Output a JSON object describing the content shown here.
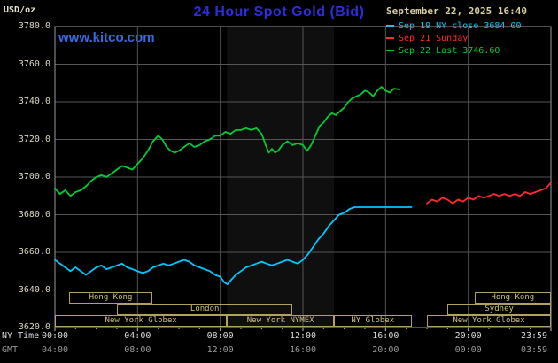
{
  "header": {
    "units": "USD/oz",
    "title": "24 Hour Spot Gold (Bid)",
    "datetime": "September 22, 2025 16:40",
    "watermark": "www.kitco.com",
    "legend": [
      {
        "label": "Sep 19 NY close 3684.00",
        "color": "#00c8ff"
      },
      {
        "label": "Sep 21 Sunday",
        "color": "#ff2a2a"
      },
      {
        "label": "Sep 22 Last 3746.60",
        "color": "#00cc33"
      }
    ]
  },
  "footer": {
    "ny_time_label": "NY Time",
    "gmt_label": "GMT"
  },
  "chart_data": {
    "type": "line",
    "title": "24 Hour Spot Gold (Bid)",
    "xlabel": "NY Time / GMT",
    "ylabel": "USD/oz",
    "ylim": [
      3620,
      3780
    ],
    "xlim_hours": [
      0,
      24
    ],
    "grid": true,
    "grid_color": "#555555",
    "border_color": "#9a9a9a",
    "legend_position": "top-right",
    "y_ticks": [
      3780,
      3760,
      3740,
      3720,
      3700,
      3680,
      3660,
      3640,
      3620
    ],
    "x_ticks": [
      {
        "hour": 0,
        "ny": "00:00",
        "gmt": "04:00"
      },
      {
        "hour": 4,
        "ny": "04:00",
        "gmt": "08:00"
      },
      {
        "hour": 8,
        "ny": "08:00",
        "gmt": "12:00"
      },
      {
        "hour": 12,
        "ny": "12:00",
        "gmt": "16:00"
      },
      {
        "hour": 16,
        "ny": "16:00",
        "gmt": "20:00"
      },
      {
        "hour": 20,
        "ny": "20:00",
        "gmt": "00:00"
      },
      {
        "hour": 23.983,
        "ny": "23:59",
        "gmt": "03:59"
      }
    ],
    "band": {
      "name": "nymex-hours-shading",
      "start": 8.33,
      "end": 13.5,
      "color": "rgba(255,255,255,0.06)"
    },
    "series": [
      {
        "id": "sep19",
        "name": "Sep 19 NY close 3684.00",
        "color": "#00c8ff",
        "points": [
          [
            0,
            3656
          ],
          [
            0.25,
            3654
          ],
          [
            0.5,
            3652
          ],
          [
            0.75,
            3650
          ],
          [
            1,
            3652
          ],
          [
            1.25,
            3650
          ],
          [
            1.5,
            3648
          ],
          [
            1.75,
            3650
          ],
          [
            2,
            3652
          ],
          [
            2.25,
            3653
          ],
          [
            2.5,
            3651
          ],
          [
            2.75,
            3652
          ],
          [
            3,
            3653
          ],
          [
            3.25,
            3654
          ],
          [
            3.5,
            3652
          ],
          [
            3.75,
            3651
          ],
          [
            4,
            3650
          ],
          [
            4.25,
            3649
          ],
          [
            4.5,
            3650
          ],
          [
            4.75,
            3652
          ],
          [
            5,
            3653
          ],
          [
            5.25,
            3654
          ],
          [
            5.5,
            3653
          ],
          [
            5.75,
            3654
          ],
          [
            6,
            3655
          ],
          [
            6.25,
            3656
          ],
          [
            6.5,
            3655
          ],
          [
            6.75,
            3653
          ],
          [
            7,
            3652
          ],
          [
            7.25,
            3651
          ],
          [
            7.5,
            3650
          ],
          [
            7.75,
            3648
          ],
          [
            8,
            3647
          ],
          [
            8.2,
            3644
          ],
          [
            8.35,
            3643
          ],
          [
            8.5,
            3645
          ],
          [
            8.75,
            3648
          ],
          [
            9,
            3650
          ],
          [
            9.25,
            3652
          ],
          [
            9.5,
            3653
          ],
          [
            9.75,
            3654
          ],
          [
            10,
            3655
          ],
          [
            10.25,
            3654
          ],
          [
            10.5,
            3653
          ],
          [
            10.75,
            3654
          ],
          [
            11,
            3655
          ],
          [
            11.25,
            3656
          ],
          [
            11.5,
            3655
          ],
          [
            11.75,
            3654
          ],
          [
            12,
            3656
          ],
          [
            12.25,
            3659
          ],
          [
            12.5,
            3663
          ],
          [
            12.75,
            3667
          ],
          [
            13,
            3670
          ],
          [
            13.25,
            3674
          ],
          [
            13.5,
            3677
          ],
          [
            13.75,
            3680
          ],
          [
            14,
            3681
          ],
          [
            14.25,
            3683
          ],
          [
            14.5,
            3684
          ],
          [
            15,
            3684
          ],
          [
            15.5,
            3684
          ],
          [
            16,
            3684
          ],
          [
            16.5,
            3684
          ],
          [
            17,
            3684
          ],
          [
            17.25,
            3684
          ]
        ]
      },
      {
        "id": "sep21",
        "name": "Sep 21 Sunday",
        "color": "#ff2a2a",
        "points": [
          [
            18,
            3686
          ],
          [
            18.25,
            3688
          ],
          [
            18.5,
            3687
          ],
          [
            18.75,
            3689
          ],
          [
            19,
            3688
          ],
          [
            19.25,
            3686
          ],
          [
            19.5,
            3688
          ],
          [
            19.75,
            3687
          ],
          [
            20,
            3689
          ],
          [
            20.25,
            3688
          ],
          [
            20.5,
            3690
          ],
          [
            20.75,
            3689
          ],
          [
            21,
            3690
          ],
          [
            21.25,
            3691
          ],
          [
            21.5,
            3690
          ],
          [
            21.75,
            3691
          ],
          [
            22,
            3690
          ],
          [
            22.25,
            3691
          ],
          [
            22.5,
            3690
          ],
          [
            22.75,
            3692
          ],
          [
            23,
            3691
          ],
          [
            23.25,
            3692
          ],
          [
            23.5,
            3693
          ],
          [
            23.75,
            3694
          ],
          [
            24,
            3697
          ]
        ]
      },
      {
        "id": "sep22",
        "name": "Sep 22 Last 3746.60",
        "color": "#00cc33",
        "points": [
          [
            0,
            3694
          ],
          [
            0.25,
            3691
          ],
          [
            0.5,
            3693
          ],
          [
            0.75,
            3690
          ],
          [
            1,
            3692
          ],
          [
            1.25,
            3693
          ],
          [
            1.5,
            3695
          ],
          [
            1.75,
            3698
          ],
          [
            2,
            3700
          ],
          [
            2.25,
            3701
          ],
          [
            2.5,
            3700
          ],
          [
            2.75,
            3702
          ],
          [
            3,
            3704
          ],
          [
            3.25,
            3706
          ],
          [
            3.5,
            3705
          ],
          [
            3.75,
            3704
          ],
          [
            4,
            3707
          ],
          [
            4.25,
            3710
          ],
          [
            4.5,
            3714
          ],
          [
            4.75,
            3719
          ],
          [
            5,
            3722
          ],
          [
            5.2,
            3720
          ],
          [
            5.4,
            3716
          ],
          [
            5.6,
            3714
          ],
          [
            5.8,
            3713
          ],
          [
            6,
            3714
          ],
          [
            6.25,
            3716
          ],
          [
            6.5,
            3718
          ],
          [
            6.75,
            3716
          ],
          [
            7,
            3717
          ],
          [
            7.25,
            3719
          ],
          [
            7.5,
            3720
          ],
          [
            7.75,
            3722
          ],
          [
            8,
            3722
          ],
          [
            8.25,
            3724
          ],
          [
            8.5,
            3723
          ],
          [
            8.75,
            3725
          ],
          [
            9,
            3725
          ],
          [
            9.25,
            3726
          ],
          [
            9.5,
            3725
          ],
          [
            9.75,
            3726
          ],
          [
            10,
            3723
          ],
          [
            10.2,
            3717
          ],
          [
            10.35,
            3713
          ],
          [
            10.5,
            3715
          ],
          [
            10.65,
            3713
          ],
          [
            10.8,
            3714
          ],
          [
            11,
            3717
          ],
          [
            11.25,
            3719
          ],
          [
            11.5,
            3717
          ],
          [
            11.75,
            3718
          ],
          [
            12,
            3717
          ],
          [
            12.2,
            3714
          ],
          [
            12.4,
            3717
          ],
          [
            12.6,
            3722
          ],
          [
            12.8,
            3727
          ],
          [
            13,
            3729
          ],
          [
            13.2,
            3732
          ],
          [
            13.4,
            3734
          ],
          [
            13.6,
            3733
          ],
          [
            13.8,
            3735
          ],
          [
            14,
            3737
          ],
          [
            14.2,
            3740
          ],
          [
            14.4,
            3742
          ],
          [
            14.6,
            3743
          ],
          [
            14.8,
            3744
          ],
          [
            15,
            3746
          ],
          [
            15.2,
            3745
          ],
          [
            15.4,
            3743
          ],
          [
            15.6,
            3746
          ],
          [
            15.8,
            3748
          ],
          [
            16,
            3746
          ],
          [
            16.2,
            3745
          ],
          [
            16.4,
            3747
          ],
          [
            16.67,
            3746.6
          ]
        ]
      }
    ]
  },
  "sessions": {
    "box_color": "#b3a25f",
    "rows": [
      {
        "boxes": [
          {
            "label": "Hong Kong",
            "start": 0.7,
            "end": 4.7
          },
          {
            "label": "Hong Kong",
            "start": 20.3,
            "end": 24
          }
        ]
      },
      {
        "boxes": [
          {
            "label": "London",
            "start": 3.0,
            "end": 11.5
          },
          {
            "label": "Sydney",
            "start": 19.0,
            "end": 24
          }
        ]
      },
      {
        "boxes": [
          {
            "label": "New York Globex",
            "start": 0,
            "end": 8.33
          },
          {
            "label": "New York NYMEX",
            "start": 8.33,
            "end": 13.5
          },
          {
            "label": "NY Globex",
            "start": 13.5,
            "end": 17.25
          },
          {
            "label": "New York Globex",
            "start": 18.0,
            "end": 24
          }
        ]
      }
    ]
  }
}
